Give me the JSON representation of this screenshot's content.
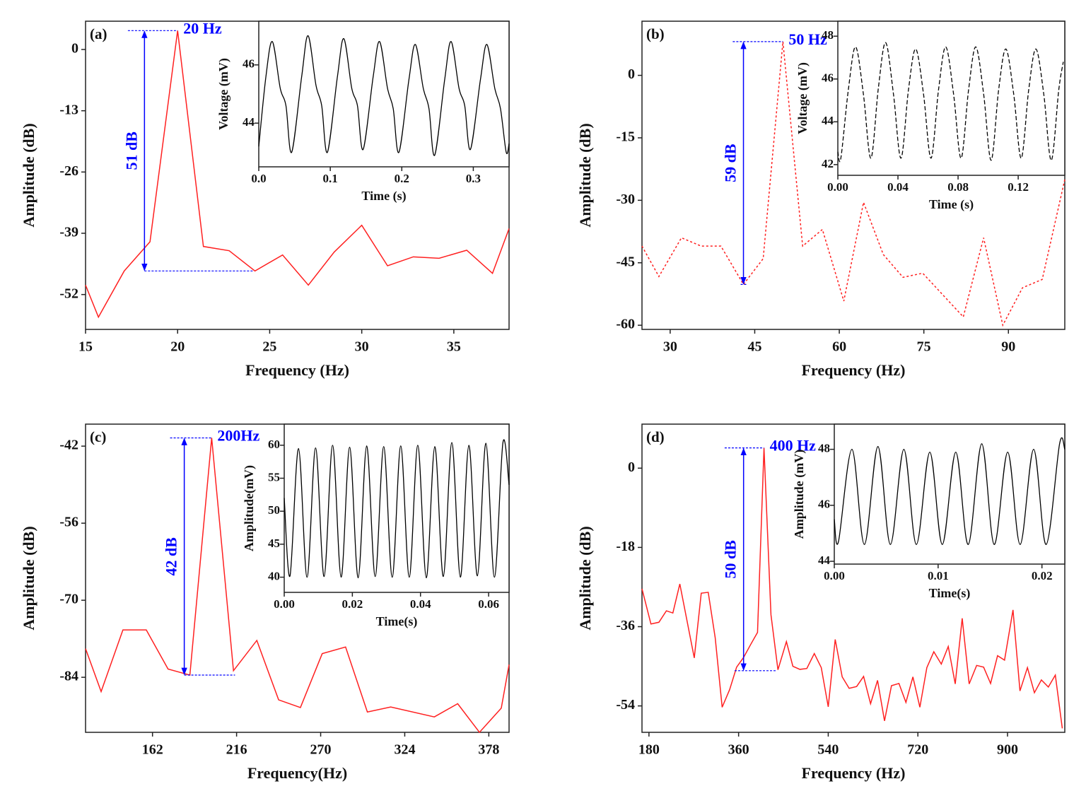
{
  "chart_data": [
    {
      "type": "line",
      "panel_label": "(a)",
      "xlabel": "Frequency (Hz)",
      "ylabel": "Amplitude (dB)",
      "color": "#ff2020",
      "linestyle": "solid",
      "x": [
        15,
        15.7,
        17.1,
        18.5,
        20,
        21.4,
        22.8,
        24.2,
        25.7,
        27.1,
        28.5,
        30,
        31.4,
        32.8,
        34.2,
        35.7,
        37.1,
        38
      ],
      "values": [
        -50,
        -56.8,
        -47,
        -40.8,
        4,
        -41.8,
        -42.7,
        -47,
        -43.6,
        -50,
        -43,
        -37.3,
        -45.9,
        -44,
        -44.3,
        -42.6,
        -47.5,
        -38
      ],
      "xlim": [
        15,
        38
      ],
      "ylim": [
        -59.4,
        6
      ],
      "xticks": [
        15,
        20,
        25,
        30,
        35
      ],
      "yticks": [
        0,
        -13,
        -26,
        -39,
        -52
      ],
      "annotation": {
        "peak_label": "20 Hz",
        "range_label": "51 dB",
        "color": "#0000ff",
        "x": 18.2,
        "y": [
          4,
          -47
        ],
        "top_x": [
          17.3,
          20
        ],
        "bottom_x": [
          18.2,
          24.1
        ]
      },
      "inset": {
        "type": "line",
        "xlabel": "Time (s)",
        "ylabel": "Voltage (mV)",
        "color": "#000000",
        "linestyle": "solid",
        "x": [
          0,
          0.01,
          0.019,
          0.03,
          0.038,
          0.046,
          0.06,
          0.069,
          0.08,
          0.088,
          0.096,
          0.11,
          0.119,
          0.13,
          0.138,
          0.146,
          0.16,
          0.169,
          0.18,
          0.188,
          0.196,
          0.21,
          0.219,
          0.23,
          0.238,
          0.246,
          0.26,
          0.269,
          0.28,
          0.288,
          0.296,
          0.31,
          0.319,
          0.33,
          0.338,
          0.346,
          0.35
        ],
        "values": [
          43.2,
          45.6,
          46.8,
          45.2,
          44.6,
          43.0,
          45.6,
          47.0,
          45.3,
          44.6,
          43.0,
          45.6,
          46.9,
          45.2,
          44.6,
          43.1,
          45.6,
          46.8,
          45.2,
          44.5,
          43.0,
          45.5,
          46.7,
          45.2,
          44.5,
          42.9,
          45.5,
          46.8,
          45.2,
          44.6,
          43.1,
          45.5,
          46.7,
          45.2,
          44.5,
          43.0,
          43.3
        ],
        "xlim": [
          0,
          0.35
        ],
        "ylim": [
          42.5,
          47.5
        ],
        "xticks": [
          {
            "value": 0,
            "label": "0.0"
          },
          0.1,
          0.2,
          0.3
        ],
        "yticks": [
          44,
          46
        ]
      }
    },
    {
      "type": "line",
      "panel_label": "(b)",
      "xlabel": "Frequency (Hz)",
      "ylabel": "Amplitude (dB)",
      "color": "#ff2020",
      "linestyle": "dotted",
      "x": [
        25,
        28,
        32,
        35.5,
        39,
        43,
        46.5,
        50,
        53.5,
        57,
        60.8,
        64.3,
        67.8,
        71.3,
        74.8,
        82,
        85.6,
        89,
        92.5,
        96,
        100
      ],
      "values": [
        -41,
        -48.3,
        -39,
        -41,
        -41,
        -50.2,
        -44,
        8.1,
        -41,
        -37,
        -54.2,
        -30.5,
        -43,
        -48.5,
        -47.5,
        -58,
        -39,
        -60,
        -51,
        -49,
        -25
      ],
      "xlim": [
        25,
        100
      ],
      "ylim": [
        -61,
        13
      ],
      "xticks": [
        30,
        45,
        60,
        75,
        90
      ],
      "yticks": [
        0,
        -15,
        -30,
        -45,
        -60
      ],
      "annotation": {
        "peak_label": "50 Hz",
        "range_label": "59 dB",
        "color": "#0000ff",
        "x": 43,
        "y": [
          8.1,
          -50.2
        ],
        "top_x": [
          41.1,
          50
        ],
        "bottom_x": [
          42.5,
          43.5
        ]
      },
      "inset": {
        "type": "line",
        "xlabel": "Time (s)",
        "ylabel": "Voltage (mV)",
        "color": "#000000",
        "linestyle": "dashed",
        "x": [
          0,
          0.002,
          0.007,
          0.0118,
          0.017,
          0.022,
          0.027,
          0.0318,
          0.037,
          0.042,
          0.047,
          0.0518,
          0.057,
          0.062,
          0.067,
          0.0718,
          0.077,
          0.082,
          0.087,
          0.0918,
          0.097,
          0.102,
          0.107,
          0.1118,
          0.117,
          0.122,
          0.127,
          0.1318,
          0.137,
          0.142,
          0.147,
          0.15
        ],
        "values": [
          42.6,
          42.3,
          45.5,
          47.5,
          45.3,
          42.3,
          45.6,
          47.7,
          45.3,
          42.3,
          45.5,
          47.4,
          45.3,
          42.3,
          45.5,
          47.5,
          45.3,
          42.3,
          45.5,
          47.5,
          45.3,
          42.2,
          45.5,
          47.4,
          45.3,
          42.3,
          45.5,
          47.4,
          45.3,
          42.2,
          45.5,
          46.8
        ],
        "xlim": [
          0,
          0.151
        ],
        "ylim": [
          41.5,
          48.7
        ],
        "xticks": [
          {
            "value": 0,
            "label": "0.00"
          },
          0.04,
          0.08,
          0.12
        ],
        "yticks": [
          42,
          44,
          46,
          48
        ]
      }
    },
    {
      "type": "line",
      "panel_label": "(c)",
      "xlabel": "Frequency(Hz)",
      "ylabel": "Amplitude (dB)",
      "color": "#ff2020",
      "linestyle": "solid",
      "x": [
        119,
        129,
        143,
        158,
        172,
        186,
        200,
        214,
        229,
        243,
        257,
        271,
        286,
        300,
        315,
        343,
        358,
        372,
        386,
        391
      ],
      "values": [
        -78.8,
        -86.6,
        -75.4,
        -75.4,
        -82.5,
        -83.6,
        -40.5,
        -82.8,
        -77.3,
        -88.1,
        -89.5,
        -79.7,
        -78.5,
        -90.3,
        -89.4,
        -91.2,
        -88.8,
        -94,
        -89.6,
        -81.7
      ],
      "xlim": [
        119,
        391
      ],
      "ylim": [
        -94,
        -38
      ],
      "xticks": [
        162,
        216,
        270,
        324,
        378
      ],
      "yticks": [
        -42,
        -56,
        -70,
        -84
      ],
      "annotation": {
        "peak_label": "200Hz",
        "range_label": "42 dB",
        "color": "#0000ff",
        "x": 182.4,
        "y": [
          -40.5,
          -83.6
        ],
        "top_x": [
          173.3,
          200
        ],
        "bottom_x": [
          182.4,
          215
        ]
      },
      "inset": {
        "type": "line",
        "xlabel": "Time(s)",
        "ylabel": "Amplitude(mV)",
        "color": "#000000",
        "linestyle": "solid",
        "x": [
          0,
          0.0017,
          0.0042,
          0.0067,
          0.0092,
          0.0117,
          0.0142,
          0.0167,
          0.0192,
          0.0217,
          0.0242,
          0.0267,
          0.0292,
          0.0317,
          0.0342,
          0.0367,
          0.0392,
          0.0417,
          0.0442,
          0.0467,
          0.0492,
          0.0517,
          0.0542,
          0.0567,
          0.0592,
          0.0617,
          0.0642,
          0.066
        ],
        "values": [
          52,
          40.2,
          59.5,
          40,
          59.6,
          40.1,
          60,
          40,
          59.7,
          39.9,
          59.9,
          40.1,
          59.8,
          40,
          59.9,
          40,
          60,
          39.9,
          59.8,
          40.1,
          60.4,
          40,
          60,
          40.2,
          60.3,
          40,
          60.4,
          54
        ],
        "xlim": [
          0,
          0.066
        ],
        "ylim": [
          37.7,
          63.2
        ],
        "xticks": [
          {
            "value": 0,
            "label": "0.00"
          },
          0.02,
          0.04,
          0.06
        ],
        "yticks": [
          40,
          45,
          50,
          55,
          60
        ]
      }
    },
    {
      "type": "line",
      "panel_label": "(d)",
      "xlabel": "Frequency (Hz)",
      "ylabel": "Amplitude (dB)",
      "color": "#ff2020",
      "linestyle": "solid",
      "x": [
        166,
        184,
        200,
        215,
        228,
        242,
        257,
        271,
        285,
        299,
        313,
        327,
        342,
        356,
        370,
        384,
        398,
        411,
        425,
        439,
        456,
        469,
        483,
        497,
        512,
        526,
        540,
        554,
        568,
        582,
        597,
        611,
        625,
        639,
        653,
        667,
        682,
        696,
        710,
        724,
        738,
        752,
        767,
        781,
        795,
        809,
        823,
        838,
        852,
        866,
        880,
        894,
        911,
        925,
        940,
        954,
        968,
        982,
        996,
        1010
      ],
      "values": [
        -27.4,
        -35.4,
        -35,
        -32.4,
        -32.9,
        -26.3,
        -35,
        -43.1,
        -28.4,
        -28.2,
        -38.5,
        -54.3,
        -50.3,
        -45.2,
        -43,
        -40.1,
        -37.3,
        4.6,
        -33.3,
        -45.8,
        -39.4,
        -45,
        -45.7,
        -45.5,
        -42.1,
        -45.3,
        -54.2,
        -38.9,
        -47.4,
        -50,
        -49.6,
        -47.3,
        -53.5,
        -48.2,
        -57.4,
        -49.4,
        -48.9,
        -53.2,
        -47.4,
        -54.3,
        -45.3,
        -41.7,
        -44.5,
        -40.5,
        -49,
        -34.1,
        -49,
        -44.8,
        -45.2,
        -48.9,
        -42.6,
        -43.6,
        -32.2,
        -50.6,
        -45.3,
        -51,
        -48.1,
        -49.7,
        -47,
        -59.1
      ],
      "xlim": [
        166,
        1015
      ],
      "ylim": [
        -60,
        10
      ],
      "xticks": [
        180,
        360,
        540,
        720,
        900
      ],
      "yticks": [
        0,
        -18,
        -36,
        -54
      ],
      "annotation": {
        "peak_label": "400 Hz",
        "range_label": "50 dB",
        "color": "#0000ff",
        "x": 370,
        "y": [
          4.6,
          -46
        ],
        "top_x": [
          332,
          411
        ],
        "bottom_x": [
          352,
          437
        ]
      },
      "inset": {
        "type": "line",
        "xlabel": "Time(s)",
        "ylabel": "Amplitude (mV)",
        "color": "#000000",
        "linestyle": "solid",
        "x": [
          0,
          0.0004,
          0.0017,
          0.0029,
          0.0042,
          0.0054,
          0.0067,
          0.0079,
          0.0092,
          0.0104,
          0.0117,
          0.0129,
          0.0142,
          0.0154,
          0.0167,
          0.0179,
          0.0192,
          0.0204,
          0.0217,
          0.0222
        ],
        "values": [
          45.5,
          44.7,
          48.0,
          44.6,
          48.1,
          44.6,
          48.0,
          44.6,
          47.9,
          44.6,
          47.9,
          44.6,
          48.2,
          44.6,
          47.9,
          44.6,
          48.0,
          44.6,
          48.2,
          48.0
        ],
        "xlim": [
          0,
          0.0222
        ],
        "ylim": [
          43.9,
          48.9
        ],
        "xticks": [
          {
            "value": 0,
            "label": "0.00"
          },
          0.01,
          0.02
        ],
        "yticks": [
          44,
          46,
          48
        ]
      }
    }
  ]
}
